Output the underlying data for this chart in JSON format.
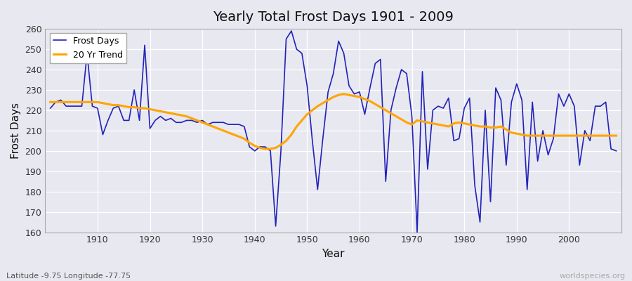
{
  "title": "Yearly Total Frost Days 1901 - 2009",
  "xlabel": "Year",
  "ylabel": "Frost Days",
  "lat_lon_label": "Latitude -9.75 Longitude -77.75",
  "watermark": "worldspecies.org",
  "ylim": [
    160,
    260
  ],
  "yticks": [
    160,
    170,
    180,
    190,
    200,
    210,
    220,
    230,
    240,
    250,
    260
  ],
  "frost_line_color": "#2222bb",
  "trend_line_color": "#FFA500",
  "bg_color": "#e8e8f0",
  "frost_days": [
    221,
    224,
    225,
    222,
    222,
    222,
    222,
    248,
    222,
    221,
    208,
    215,
    221,
    222,
    215,
    215,
    230,
    215,
    252,
    211,
    215,
    217,
    215,
    216,
    214,
    214,
    215,
    215,
    214,
    215,
    213,
    214,
    214,
    214,
    213,
    213,
    213,
    212,
    202,
    200,
    202,
    202,
    200,
    163,
    200,
    255,
    259,
    250,
    248,
    232,
    205,
    181,
    206,
    229,
    238,
    254,
    248,
    232,
    228,
    229,
    218,
    231,
    243,
    245,
    185,
    220,
    231,
    240,
    238,
    217,
    160,
    239,
    191,
    220,
    222,
    221,
    226,
    205,
    206,
    221,
    226,
    183,
    165,
    220,
    175,
    231,
    225,
    193,
    224,
    233,
    225,
    181,
    224,
    195,
    210,
    198,
    206,
    228,
    222,
    228,
    222,
    193,
    210,
    205,
    222,
    222,
    224,
    201,
    200
  ],
  "years": [
    1901,
    1902,
    1903,
    1904,
    1905,
    1906,
    1907,
    1908,
    1909,
    1910,
    1911,
    1912,
    1913,
    1914,
    1915,
    1916,
    1917,
    1918,
    1919,
    1920,
    1921,
    1922,
    1923,
    1924,
    1925,
    1926,
    1927,
    1928,
    1929,
    1930,
    1931,
    1932,
    1933,
    1934,
    1935,
    1936,
    1937,
    1938,
    1939,
    1940,
    1941,
    1942,
    1943,
    1944,
    1945,
    1946,
    1947,
    1948,
    1949,
    1950,
    1951,
    1952,
    1953,
    1954,
    1955,
    1956,
    1957,
    1958,
    1959,
    1960,
    1961,
    1962,
    1963,
    1964,
    1965,
    1966,
    1967,
    1968,
    1969,
    1970,
    1971,
    1972,
    1973,
    1974,
    1975,
    1976,
    1977,
    1978,
    1979,
    1980,
    1981,
    1982,
    1983,
    1984,
    1985,
    1986,
    1987,
    1988,
    1989,
    1990,
    1991,
    1992,
    1993,
    1994,
    1995,
    1996,
    1997,
    1998,
    1999,
    2000,
    2001,
    2002,
    2003,
    2004,
    2005,
    2006,
    2007,
    2008,
    2009
  ],
  "trend": [
    224.0,
    224.0,
    224.0,
    224.0,
    224.0,
    224.0,
    224.0,
    224.0,
    224.0,
    224.0,
    223.5,
    223.0,
    222.5,
    222.5,
    222.0,
    221.5,
    221.5,
    221.0,
    221.0,
    220.5,
    220.0,
    219.5,
    219.0,
    218.5,
    218.0,
    217.5,
    217.0,
    216.0,
    215.0,
    214.0,
    213.0,
    212.0,
    211.0,
    210.0,
    209.0,
    208.0,
    207.0,
    206.0,
    204.0,
    202.5,
    201.5,
    201.0,
    201.0,
    201.5,
    203.0,
    205.0,
    208.0,
    212.0,
    215.0,
    218.0,
    220.0,
    222.0,
    223.5,
    225.0,
    226.5,
    227.5,
    228.0,
    227.5,
    227.0,
    226.5,
    225.5,
    224.5,
    223.0,
    221.5,
    220.0,
    218.5,
    217.0,
    215.5,
    214.0,
    213.0,
    215.0,
    214.5,
    214.0,
    213.5,
    213.0,
    212.5,
    212.0,
    213.5,
    214.0,
    213.5,
    213.0,
    212.5,
    212.0,
    212.0,
    211.5,
    211.5,
    212.0,
    210.5,
    209.0,
    208.5,
    208.0,
    207.5,
    207.5,
    207.5,
    207.5,
    207.5,
    207.5,
    207.5,
    207.5,
    207.5,
    207.5,
    207.5,
    207.5,
    207.5,
    207.5,
    207.5,
    207.5,
    207.5,
    207.5
  ]
}
